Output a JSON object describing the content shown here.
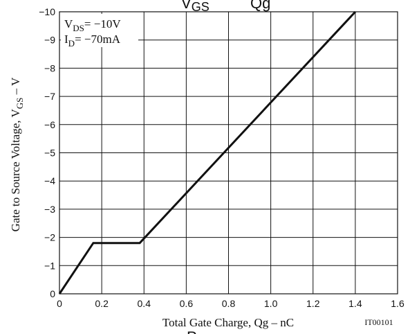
{
  "chart_data": {
    "type": "line",
    "title_fragments": {
      "left": "GS",
      "right": "Qg"
    },
    "bottom_fragment": "P",
    "xlabel": "Total Gate Charge, Qg  –  nC",
    "ylabel_parts": {
      "pre": "Gate to Source Voltage, V",
      "sub": "GS",
      "post": "  –  V"
    },
    "figure_code": "IT00101",
    "annotation": {
      "line1": {
        "pre": "V",
        "sub": "DS",
        "post": "= −10V"
      },
      "line2": {
        "pre": "I",
        "sub": "D",
        "post": "= −70mA"
      }
    },
    "x_ticks": [
      "0",
      "0.2",
      "0.4",
      "0.6",
      "0.8",
      "1.0",
      "1.2",
      "1.4",
      "1.6"
    ],
    "y_ticks": [
      "0",
      "−1",
      "−2",
      "−3",
      "−4",
      "−5",
      "−6",
      "−7",
      "−8",
      "−9",
      "−10"
    ],
    "xlim": [
      0,
      1.6
    ],
    "ylim": [
      0,
      -10
    ],
    "grid": true,
    "series": [
      {
        "x": [
          0,
          0.16,
          0.38,
          1.4
        ],
        "y": [
          0,
          -1.8,
          -1.8,
          -10
        ]
      }
    ]
  }
}
